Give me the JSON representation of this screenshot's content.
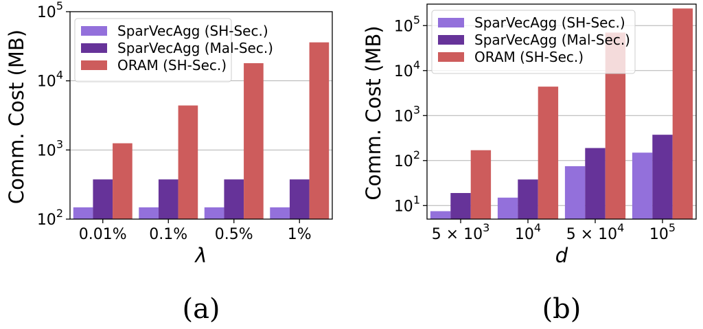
{
  "chart_data": [
    {
      "type": "bar",
      "id": "a",
      "caption": "(a)",
      "xlabel": "λ",
      "ylabel": "Comm. Cost (MB)",
      "yscale": "log",
      "ylim": [
        100,
        100000
      ],
      "yticks": [
        {
          "value": 100,
          "base": "10",
          "exp": "2"
        },
        {
          "value": 1000,
          "base": "10",
          "exp": "3"
        },
        {
          "value": 10000,
          "base": "10",
          "exp": "4"
        },
        {
          "value": 100000,
          "base": "10",
          "exp": "5"
        }
      ],
      "categories": [
        {
          "pre": "0.01%",
          "sup": "",
          "post": ""
        },
        {
          "pre": "0.1%",
          "sup": "",
          "post": ""
        },
        {
          "pre": "0.5%",
          "sup": "",
          "post": ""
        },
        {
          "pre": "1%",
          "sup": "",
          "post": ""
        }
      ],
      "series": [
        {
          "name": "SparVecAgg (SH-Sec.)",
          "color": "#9370DB",
          "values": [
            148,
            148,
            148,
            148
          ]
        },
        {
          "name": "SparVecAgg (Mal-Sec.)",
          "color": "#663399",
          "values": [
            375,
            375,
            375,
            375
          ]
        },
        {
          "name": "ORAM (SH-Sec.)",
          "color": "#CD5C5C",
          "values": [
            1250,
            4400,
            18000,
            36000
          ]
        }
      ],
      "legend": "top-left",
      "grid": "y"
    },
    {
      "type": "bar",
      "id": "b",
      "caption": "(b)",
      "xlabel": "d",
      "ylabel": "Comm. Cost (MB)",
      "yscale": "log",
      "ylim": [
        5,
        300000
      ],
      "yticks": [
        {
          "value": 10,
          "base": "10",
          "exp": "1"
        },
        {
          "value": 100,
          "base": "10",
          "exp": "2"
        },
        {
          "value": 1000,
          "base": "10",
          "exp": "3"
        },
        {
          "value": 10000,
          "base": "10",
          "exp": "4"
        },
        {
          "value": 100000,
          "base": "10",
          "exp": "5"
        }
      ],
      "categories": [
        {
          "pre": "5 × 10",
          "sup": "3",
          "post": ""
        },
        {
          "pre": "10",
          "sup": "4",
          "post": ""
        },
        {
          "pre": "5 × 10",
          "sup": "4",
          "post": ""
        },
        {
          "pre": "10",
          "sup": "5",
          "post": ""
        }
      ],
      "series": [
        {
          "name": "SparVecAgg (SH-Sec.)",
          "color": "#9370DB",
          "values": [
            7.5,
            15,
            75,
            150
          ]
        },
        {
          "name": "SparVecAgg (Mal-Sec.)",
          "color": "#663399",
          "values": [
            19,
            38,
            190,
            375
          ]
        },
        {
          "name": "ORAM (SH-Sec.)",
          "color": "#CD5C5C",
          "values": [
            170,
            4400,
            70000,
            240000
          ]
        }
      ],
      "legend": "top-left",
      "grid": "y"
    }
  ]
}
